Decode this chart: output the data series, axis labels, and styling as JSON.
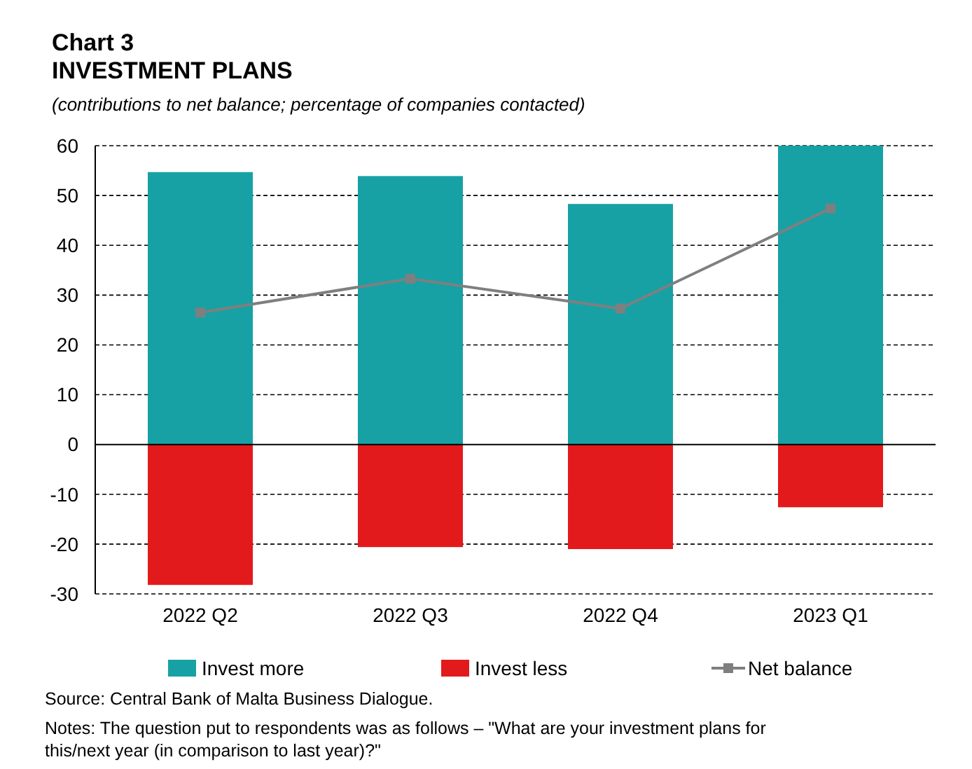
{
  "chart_data": {
    "type": "bar",
    "title": "Chart 3\nINVESTMENT PLANS",
    "subtitle": "(contributions to net balance; percentage of companies contacted)",
    "categories": [
      "2022 Q2",
      "2022 Q3",
      "2022 Q4",
      "2023 Q1"
    ],
    "series": [
      {
        "name": "Invest more",
        "color": "#17a1a5",
        "values": [
          54.7,
          53.9,
          48.3,
          60
        ]
      },
      {
        "name": "Invest less",
        "color": "#e31a1c",
        "values": [
          -28.2,
          -20.6,
          -21.0,
          -12.6
        ]
      },
      {
        "name": "Net balance",
        "type": "line",
        "color": "#7f7f7f",
        "values": [
          26.5,
          33.3,
          27.3,
          47.4
        ],
        "marker": "square"
      }
    ],
    "stacked": true,
    "ylim": [
      -30,
      60
    ],
    "yticks": [
      -30,
      -20,
      -10,
      0,
      10,
      20,
      30,
      40,
      50,
      60
    ],
    "grid": "y",
    "legend": "bottom",
    "annotations": [
      "Source: Central Bank of Malta Business Dialogue.",
      "Notes: The question put to respondents was as follows – \"What are your investment plans for this/next year (in comparison to last year)?\""
    ]
  }
}
